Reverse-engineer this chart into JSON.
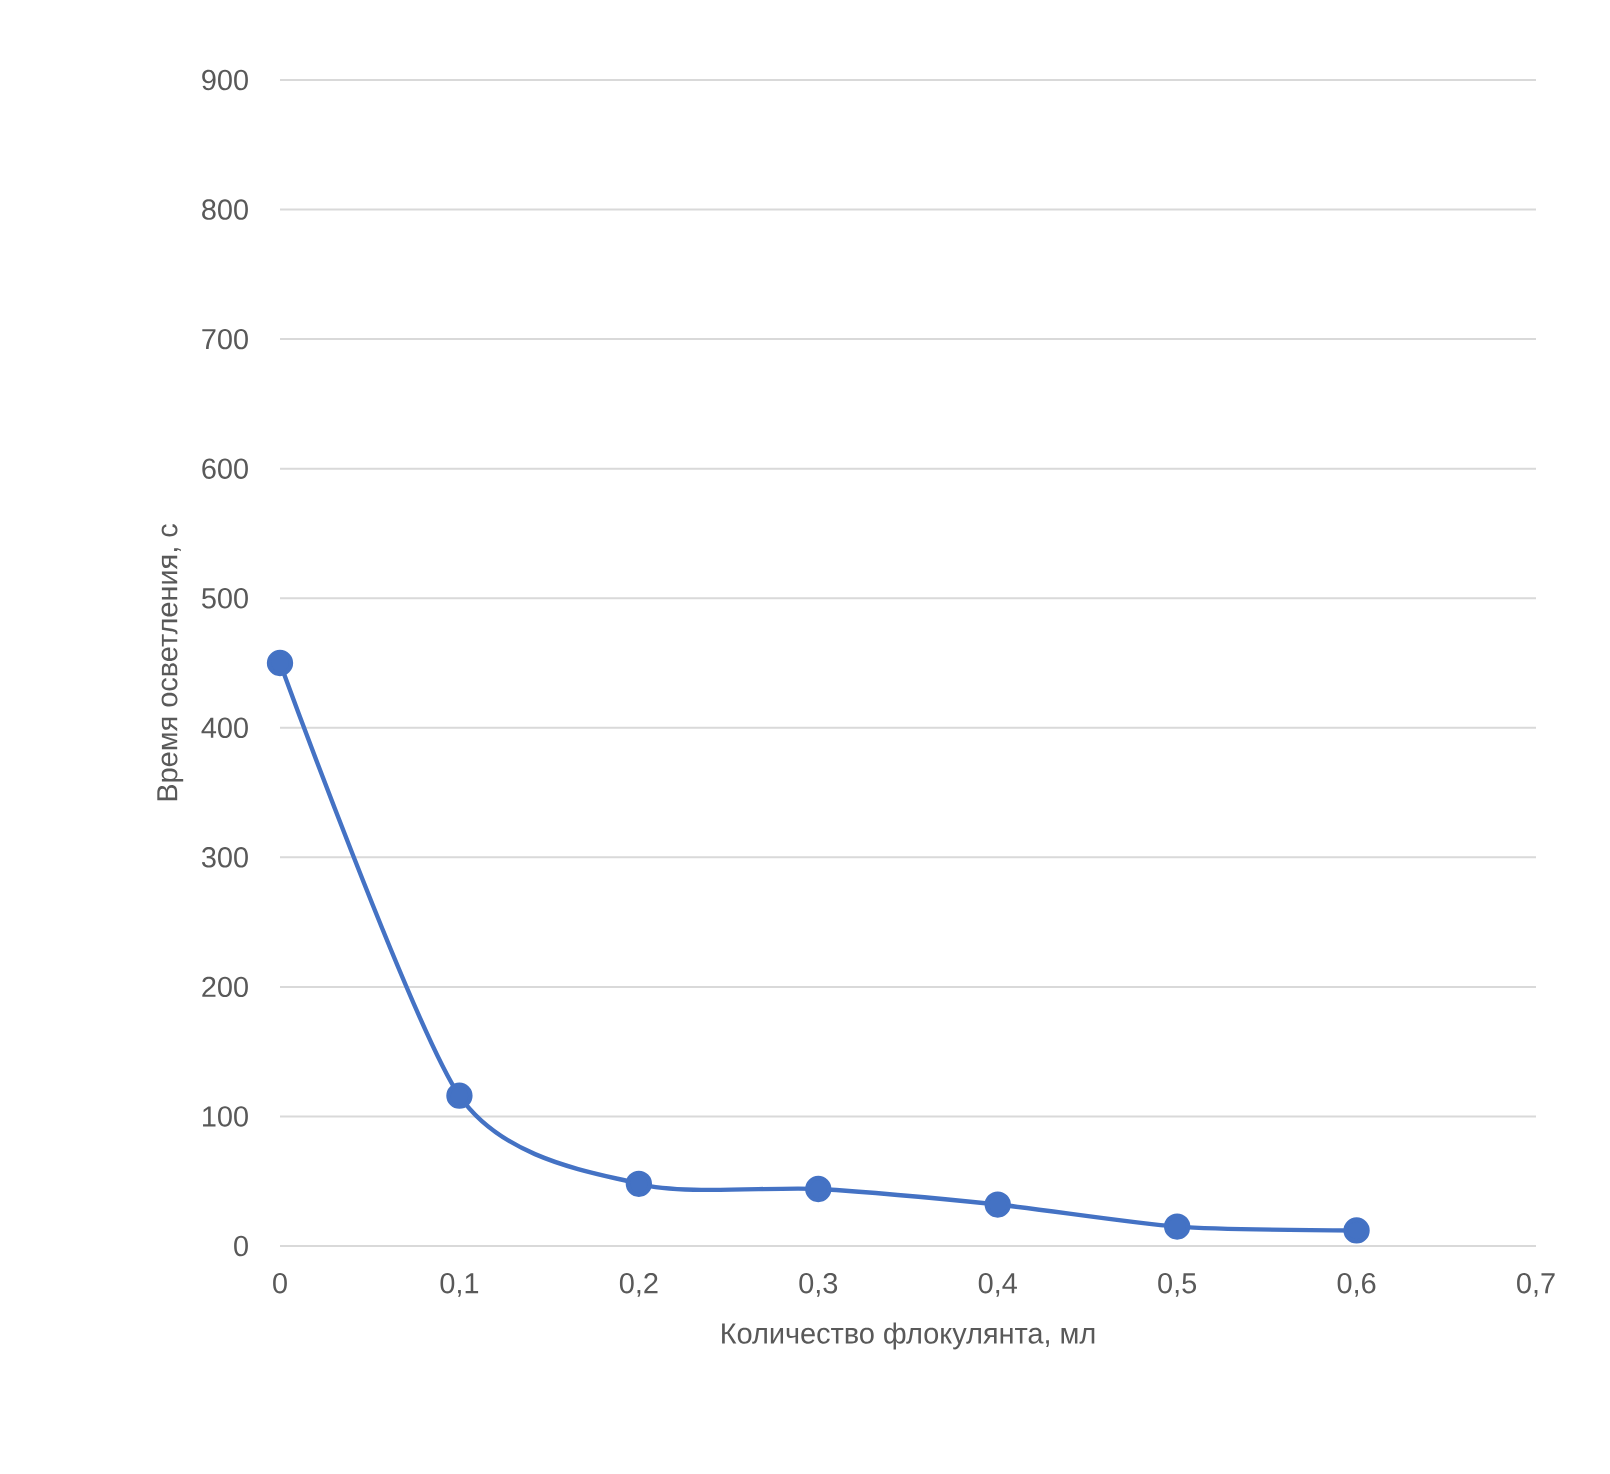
{
  "chart_data": {
    "type": "line",
    "xlabel": "Количество флокулянта, мл",
    "ylabel": "Время осветления, с",
    "x": [
      0,
      0.1,
      0.2,
      0.3,
      0.4,
      0.5,
      0.6
    ],
    "series": [
      {
        "color": "#4472c4",
        "values": [
          450,
          116,
          48,
          44,
          32,
          15,
          12
        ]
      }
    ],
    "xlim": [
      0,
      0.7
    ],
    "xticks": [
      0,
      {
        "value": 0.1,
        "label": "0,1"
      },
      {
        "value": 0.2,
        "label": "0,2"
      },
      {
        "value": 0.3,
        "label": "0,3"
      },
      {
        "value": 0.4,
        "label": "0,4"
      },
      {
        "value": 0.5,
        "label": "0,5"
      },
      {
        "value": 0.6,
        "label": "0,6"
      },
      {
        "value": 0.7,
        "label": "0,7"
      }
    ],
    "ylim": [
      0,
      900
    ],
    "yticks": [
      0,
      100,
      200,
      300,
      400,
      500,
      600,
      700,
      800,
      900
    ],
    "grid": "y",
    "marker": "circle",
    "line_style": "solid"
  }
}
